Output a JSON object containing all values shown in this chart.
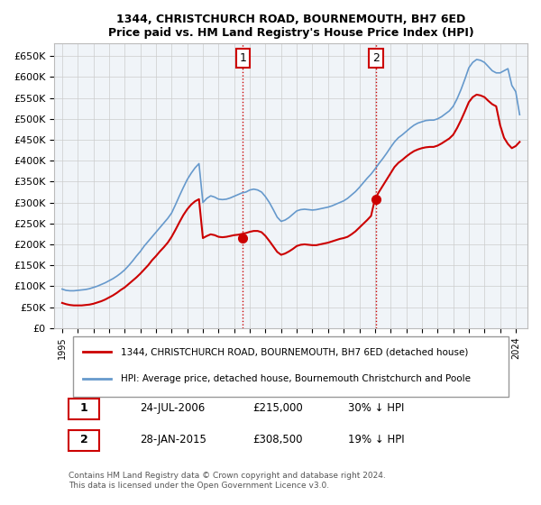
{
  "title": "1344, CHRISTCHURCH ROAD, BOURNEMOUTH, BH7 6ED",
  "subtitle": "Price paid vs. HM Land Registry's House Price Index (HPI)",
  "legend_line1": "1344, CHRISTCHURCH ROAD, BOURNEMOUTH, BH7 6ED (detached house)",
  "legend_line2": "HPI: Average price, detached house, Bournemouth Christchurch and Poole",
  "sale1_label": "1",
  "sale1_date": "24-JUL-2006",
  "sale1_price": "£215,000",
  "sale1_hpi": "30% ↓ HPI",
  "sale1_year": 2006.56,
  "sale1_value": 215000,
  "sale2_label": "2",
  "sale2_date": "28-JAN-2015",
  "sale2_price": "£308,500",
  "sale2_hpi": "19% ↓ HPI",
  "sale2_year": 2015.07,
  "sale2_value": 308500,
  "footer": "Contains HM Land Registry data © Crown copyright and database right 2024.\nThis data is licensed under the Open Government Licence v3.0.",
  "red_color": "#cc0000",
  "blue_color": "#6699cc",
  "grid_color": "#cccccc",
  "bg_color": "#f0f4f8",
  "ylim": [
    0,
    680000
  ],
  "yticks": [
    0,
    50000,
    100000,
    150000,
    200000,
    250000,
    300000,
    350000,
    400000,
    450000,
    500000,
    550000,
    600000,
    650000
  ],
  "hpi_years": [
    1995.0,
    1995.25,
    1995.5,
    1995.75,
    1996.0,
    1996.25,
    1996.5,
    1996.75,
    1997.0,
    1997.25,
    1997.5,
    1997.75,
    1998.0,
    1998.25,
    1998.5,
    1998.75,
    1999.0,
    1999.25,
    1999.5,
    1999.75,
    2000.0,
    2000.25,
    2000.5,
    2000.75,
    2001.0,
    2001.25,
    2001.5,
    2001.75,
    2002.0,
    2002.25,
    2002.5,
    2002.75,
    2003.0,
    2003.25,
    2003.5,
    2003.75,
    2004.0,
    2004.25,
    2004.5,
    2004.75,
    2005.0,
    2005.25,
    2005.5,
    2005.75,
    2006.0,
    2006.25,
    2006.5,
    2006.75,
    2007.0,
    2007.25,
    2007.5,
    2007.75,
    2008.0,
    2008.25,
    2008.5,
    2008.75,
    2009.0,
    2009.25,
    2009.5,
    2009.75,
    2010.0,
    2010.25,
    2010.5,
    2010.75,
    2011.0,
    2011.25,
    2011.5,
    2011.75,
    2012.0,
    2012.25,
    2012.5,
    2012.75,
    2013.0,
    2013.25,
    2013.5,
    2013.75,
    2014.0,
    2014.25,
    2014.5,
    2014.75,
    2015.0,
    2015.25,
    2015.5,
    2015.75,
    2016.0,
    2016.25,
    2016.5,
    2016.75,
    2017.0,
    2017.25,
    2017.5,
    2017.75,
    2018.0,
    2018.25,
    2018.5,
    2018.75,
    2019.0,
    2019.25,
    2019.5,
    2019.75,
    2020.0,
    2020.25,
    2020.5,
    2020.75,
    2021.0,
    2021.25,
    2021.5,
    2021.75,
    2022.0,
    2022.25,
    2022.5,
    2022.75,
    2023.0,
    2023.25,
    2023.5,
    2023.75,
    2024.0,
    2024.25
  ],
  "hpi_values": [
    93000,
    90000,
    89000,
    89000,
    90000,
    91000,
    92000,
    94000,
    97000,
    100000,
    104000,
    108000,
    113000,
    118000,
    124000,
    131000,
    139000,
    149000,
    160000,
    172000,
    183000,
    196000,
    207000,
    218000,
    229000,
    240000,
    251000,
    262000,
    275000,
    295000,
    316000,
    336000,
    355000,
    370000,
    383000,
    393000,
    300000,
    310000,
    316000,
    313000,
    308000,
    307000,
    308000,
    311000,
    315000,
    319000,
    323000,
    325000,
    330000,
    332000,
    330000,
    325000,
    314000,
    300000,
    283000,
    265000,
    255000,
    258000,
    264000,
    272000,
    280000,
    283000,
    284000,
    283000,
    282000,
    283000,
    285000,
    287000,
    289000,
    292000,
    296000,
    300000,
    304000,
    310000,
    318000,
    326000,
    336000,
    347000,
    358000,
    368000,
    380000,
    393000,
    405000,
    418000,
    432000,
    445000,
    455000,
    462000,
    470000,
    478000,
    485000,
    490000,
    493000,
    496000,
    497000,
    497000,
    500000,
    505000,
    512000,
    519000,
    530000,
    548000,
    570000,
    595000,
    622000,
    635000,
    642000,
    640000,
    635000,
    625000,
    615000,
    610000,
    610000,
    615000,
    620000,
    580000,
    565000,
    510000
  ],
  "red_years": [
    1995.0,
    1995.25,
    1995.5,
    1995.75,
    1996.0,
    1996.25,
    1996.5,
    1996.75,
    1997.0,
    1997.25,
    1997.5,
    1997.75,
    1998.0,
    1998.25,
    1998.5,
    1998.75,
    1999.0,
    1999.25,
    1999.5,
    1999.75,
    2000.0,
    2000.25,
    2000.5,
    2000.75,
    2001.0,
    2001.25,
    2001.5,
    2001.75,
    2002.0,
    2002.25,
    2002.5,
    2002.75,
    2003.0,
    2003.25,
    2003.5,
    2003.75,
    2004.0,
    2004.25,
    2004.5,
    2004.75,
    2005.0,
    2005.25,
    2005.5,
    2005.75,
    2006.0,
    2006.25,
    2006.5,
    2006.75,
    2007.0,
    2007.25,
    2007.5,
    2007.75,
    2008.0,
    2008.25,
    2008.5,
    2008.75,
    2009.0,
    2009.25,
    2009.5,
    2009.75,
    2010.0,
    2010.25,
    2010.5,
    2010.75,
    2011.0,
    2011.25,
    2011.5,
    2011.75,
    2012.0,
    2012.25,
    2012.5,
    2012.75,
    2013.0,
    2013.25,
    2013.5,
    2013.75,
    2014.0,
    2014.25,
    2014.5,
    2014.75,
    2015.0,
    2015.25,
    2015.5,
    2015.75,
    2016.0,
    2016.25,
    2016.5,
    2016.75,
    2017.0,
    2017.25,
    2017.5,
    2017.75,
    2018.0,
    2018.25,
    2018.5,
    2018.75,
    2019.0,
    2019.25,
    2019.5,
    2019.75,
    2020.0,
    2020.25,
    2020.5,
    2020.75,
    2021.0,
    2021.25,
    2021.5,
    2021.75,
    2022.0,
    2022.25,
    2022.5,
    2022.75,
    2023.0,
    2023.25,
    2023.5,
    2023.75,
    2024.0,
    2024.25
  ],
  "red_values": [
    60000,
    57000,
    55000,
    54000,
    54000,
    54000,
    55000,
    56000,
    58000,
    61000,
    64000,
    68000,
    73000,
    78000,
    84000,
    91000,
    97000,
    105000,
    113000,
    121000,
    130000,
    140000,
    150000,
    162000,
    172000,
    183000,
    193000,
    204000,
    218000,
    235000,
    253000,
    270000,
    284000,
    295000,
    303000,
    308000,
    215000,
    220000,
    224000,
    222000,
    218000,
    217000,
    218000,
    220000,
    222000,
    223000,
    225000,
    227000,
    230000,
    232000,
    232000,
    229000,
    220000,
    208000,
    195000,
    182000,
    175000,
    178000,
    183000,
    189000,
    196000,
    199000,
    200000,
    199000,
    198000,
    198000,
    200000,
    202000,
    204000,
    207000,
    210000,
    213000,
    215000,
    218000,
    224000,
    231000,
    240000,
    249000,
    258000,
    268000,
    308500,
    325000,
    340000,
    355000,
    370000,
    385000,
    395000,
    402000,
    410000,
    417000,
    423000,
    427000,
    430000,
    432000,
    433000,
    433000,
    436000,
    441000,
    447000,
    453000,
    462000,
    478000,
    497000,
    518000,
    540000,
    552000,
    558000,
    556000,
    552000,
    543000,
    535000,
    530000,
    485000,
    455000,
    440000,
    430000,
    435000,
    445000
  ]
}
